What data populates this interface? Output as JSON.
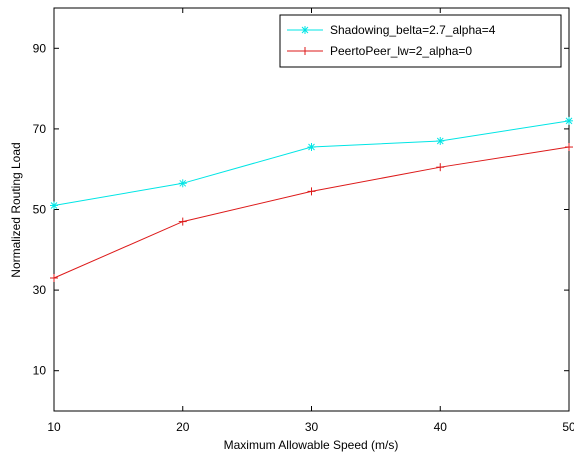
{
  "chart_data": {
    "type": "line",
    "title": "",
    "xlabel": "Maximum Allowable Speed (m/s)",
    "ylabel": "Normalized Routing Load",
    "x": [
      10,
      20,
      30,
      40,
      50
    ],
    "xlim": [
      10,
      50
    ],
    "ylim": [
      0,
      100
    ],
    "xticks": [
      "10",
      "20",
      "30",
      "40",
      "50"
    ],
    "yticks": [
      "10",
      "30",
      "50",
      "70",
      "90"
    ],
    "grid": false,
    "legend_position": "top-right",
    "series": [
      {
        "name": "Shadowing_belta=2.7_alpha=4",
        "values": [
          51,
          56.5,
          65.5,
          67,
          72
        ],
        "color": "#00e5e5",
        "marker": "asterisk"
      },
      {
        "name": "PeertoPeer_lw=2_alpha=0",
        "values": [
          33,
          47,
          54.5,
          60.5,
          65.5
        ],
        "color": "#dd1a1a",
        "marker": "plus"
      }
    ]
  }
}
